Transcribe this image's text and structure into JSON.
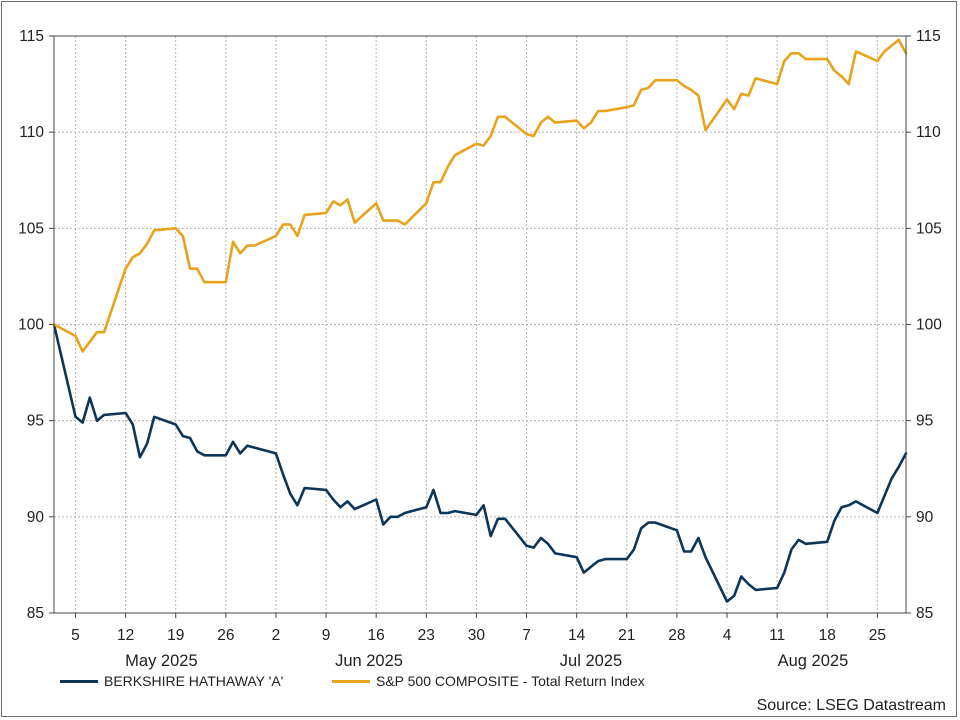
{
  "chart_data": {
    "type": "line",
    "source": "Source: LSEG Datastream",
    "ylim": [
      85,
      115
    ],
    "yticks": [
      85,
      90,
      95,
      100,
      105,
      110,
      115
    ],
    "date_range": [
      "2025-05-02",
      "2025-08-29"
    ],
    "x_tick_labels": [
      {
        "label": "5",
        "date": "2025-05-05"
      },
      {
        "label": "12",
        "date": "2025-05-12"
      },
      {
        "label": "19",
        "date": "2025-05-19"
      },
      {
        "label": "26",
        "date": "2025-05-26"
      },
      {
        "label": "2",
        "date": "2025-06-02"
      },
      {
        "label": "9",
        "date": "2025-06-09"
      },
      {
        "label": "16",
        "date": "2025-06-16"
      },
      {
        "label": "23",
        "date": "2025-06-23"
      },
      {
        "label": "30",
        "date": "2025-06-30"
      },
      {
        "label": "7",
        "date": "2025-07-07"
      },
      {
        "label": "14",
        "date": "2025-07-14"
      },
      {
        "label": "21",
        "date": "2025-07-21"
      },
      {
        "label": "28",
        "date": "2025-07-28"
      },
      {
        "label": "4",
        "date": "2025-08-04"
      },
      {
        "label": "11",
        "date": "2025-08-11"
      },
      {
        "label": "18",
        "date": "2025-08-18"
      },
      {
        "label": "25",
        "date": "2025-08-25"
      }
    ],
    "month_labels": [
      {
        "label": "May 2025",
        "date": "2025-05-17"
      },
      {
        "label": "Jun 2025",
        "date": "2025-06-15"
      },
      {
        "label": "Jul 2025",
        "date": "2025-07-16"
      },
      {
        "label": "Aug 2025",
        "date": "2025-08-16"
      }
    ],
    "grid": true,
    "legend_position": "bottom",
    "series": [
      {
        "name": "BERKSHIRE HATHAWAY 'A'",
        "color": "#0d3558",
        "x": [
          "2025-05-02",
          "2025-05-05",
          "2025-05-06",
          "2025-05-07",
          "2025-05-08",
          "2025-05-09",
          "2025-05-12",
          "2025-05-13",
          "2025-05-14",
          "2025-05-15",
          "2025-05-16",
          "2025-05-19",
          "2025-05-20",
          "2025-05-21",
          "2025-05-22",
          "2025-05-23",
          "2025-05-26",
          "2025-05-27",
          "2025-05-28",
          "2025-05-29",
          "2025-05-30",
          "2025-06-02",
          "2025-06-03",
          "2025-06-04",
          "2025-06-05",
          "2025-06-06",
          "2025-06-09",
          "2025-06-10",
          "2025-06-11",
          "2025-06-12",
          "2025-06-13",
          "2025-06-16",
          "2025-06-17",
          "2025-06-18",
          "2025-06-19",
          "2025-06-20",
          "2025-06-23",
          "2025-06-24",
          "2025-06-25",
          "2025-06-26",
          "2025-06-27",
          "2025-06-30",
          "2025-07-01",
          "2025-07-02",
          "2025-07-03",
          "2025-07-04",
          "2025-07-07",
          "2025-07-08",
          "2025-07-09",
          "2025-07-10",
          "2025-07-11",
          "2025-07-14",
          "2025-07-15",
          "2025-07-16",
          "2025-07-17",
          "2025-07-18",
          "2025-07-21",
          "2025-07-22",
          "2025-07-23",
          "2025-07-24",
          "2025-07-25",
          "2025-07-28",
          "2025-07-29",
          "2025-07-30",
          "2025-07-31",
          "2025-08-01",
          "2025-08-04",
          "2025-08-05",
          "2025-08-06",
          "2025-08-07",
          "2025-08-08",
          "2025-08-11",
          "2025-08-12",
          "2025-08-13",
          "2025-08-14",
          "2025-08-15",
          "2025-08-18",
          "2025-08-19",
          "2025-08-20",
          "2025-08-21",
          "2025-08-22",
          "2025-08-25",
          "2025-08-26",
          "2025-08-27",
          "2025-08-28",
          "2025-08-29"
        ],
        "values": [
          100.0,
          95.2,
          94.9,
          96.2,
          95.0,
          95.3,
          95.4,
          94.8,
          93.1,
          93.8,
          95.2,
          94.8,
          94.2,
          94.1,
          93.4,
          93.2,
          93.2,
          93.9,
          93.3,
          93.7,
          93.6,
          93.3,
          92.2,
          91.2,
          90.6,
          91.5,
          91.4,
          90.9,
          90.5,
          90.8,
          90.4,
          90.9,
          89.6,
          90.0,
          90.0,
          90.2,
          90.5,
          91.4,
          90.2,
          90.2,
          90.3,
          90.1,
          90.6,
          89.0,
          89.9,
          89.9,
          88.5,
          88.4,
          88.9,
          88.6,
          88.1,
          87.9,
          87.1,
          87.4,
          87.7,
          87.8,
          87.8,
          88.3,
          89.4,
          89.7,
          89.7,
          89.3,
          88.2,
          88.2,
          88.9,
          87.9,
          85.6,
          85.9,
          86.9,
          86.5,
          86.2,
          86.3,
          87.1,
          88.3,
          88.8,
          88.6,
          88.7,
          89.8,
          90.5,
          90.6,
          90.8,
          90.2,
          91.1,
          92.0,
          92.6,
          93.3
        ]
      },
      {
        "name": "S&P 500 COMPOSITE - Total Return Index",
        "color": "#e8a21b",
        "x": [
          "2025-05-02",
          "2025-05-05",
          "2025-05-06",
          "2025-05-07",
          "2025-05-08",
          "2025-05-09",
          "2025-05-12",
          "2025-05-13",
          "2025-05-14",
          "2025-05-15",
          "2025-05-16",
          "2025-05-19",
          "2025-05-20",
          "2025-05-21",
          "2025-05-22",
          "2025-05-23",
          "2025-05-26",
          "2025-05-27",
          "2025-05-28",
          "2025-05-29",
          "2025-05-30",
          "2025-06-02",
          "2025-06-03",
          "2025-06-04",
          "2025-06-05",
          "2025-06-06",
          "2025-06-09",
          "2025-06-10",
          "2025-06-11",
          "2025-06-12",
          "2025-06-13",
          "2025-06-16",
          "2025-06-17",
          "2025-06-18",
          "2025-06-19",
          "2025-06-20",
          "2025-06-23",
          "2025-06-24",
          "2025-06-25",
          "2025-06-26",
          "2025-06-27",
          "2025-06-30",
          "2025-07-01",
          "2025-07-02",
          "2025-07-03",
          "2025-07-04",
          "2025-07-07",
          "2025-07-08",
          "2025-07-09",
          "2025-07-10",
          "2025-07-11",
          "2025-07-14",
          "2025-07-15",
          "2025-07-16",
          "2025-07-17",
          "2025-07-18",
          "2025-07-21",
          "2025-07-22",
          "2025-07-23",
          "2025-07-24",
          "2025-07-25",
          "2025-07-28",
          "2025-07-29",
          "2025-07-30",
          "2025-07-31",
          "2025-08-01",
          "2025-08-04",
          "2025-08-05",
          "2025-08-06",
          "2025-08-07",
          "2025-08-08",
          "2025-08-11",
          "2025-08-12",
          "2025-08-13",
          "2025-08-14",
          "2025-08-15",
          "2025-08-18",
          "2025-08-19",
          "2025-08-20",
          "2025-08-21",
          "2025-08-22",
          "2025-08-25",
          "2025-08-26",
          "2025-08-27",
          "2025-08-28",
          "2025-08-29"
        ],
        "values": [
          100.0,
          99.4,
          98.6,
          99.1,
          99.6,
          99.6,
          102.9,
          103.5,
          103.7,
          104.2,
          104.9,
          105.0,
          104.6,
          102.9,
          102.9,
          102.2,
          102.2,
          104.3,
          103.7,
          104.1,
          104.1,
          104.6,
          105.2,
          105.2,
          104.6,
          105.7,
          105.8,
          106.4,
          106.2,
          106.5,
          105.3,
          106.3,
          105.4,
          105.4,
          105.4,
          105.2,
          106.3,
          107.4,
          107.4,
          108.2,
          108.8,
          109.4,
          109.3,
          109.8,
          110.8,
          110.8,
          109.9,
          109.8,
          110.5,
          110.8,
          110.5,
          110.6,
          110.2,
          110.5,
          111.1,
          111.1,
          111.3,
          111.4,
          112.2,
          112.3,
          112.7,
          112.7,
          112.4,
          112.2,
          111.9,
          110.1,
          111.7,
          111.2,
          112.0,
          111.9,
          112.8,
          112.5,
          113.7,
          114.1,
          114.1,
          113.8,
          113.8,
          113.2,
          112.9,
          112.5,
          114.2,
          113.7,
          114.2,
          114.5,
          114.8,
          114.1
        ]
      }
    ]
  }
}
